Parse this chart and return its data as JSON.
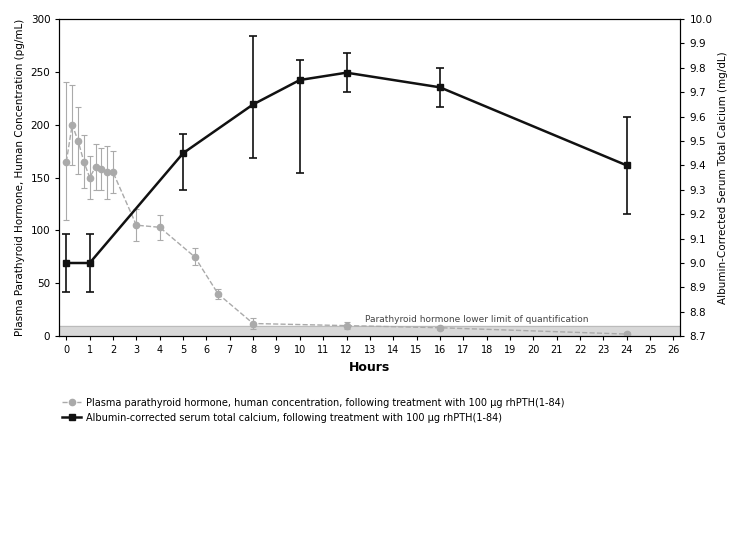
{
  "pth_x": [
    0,
    0.25,
    0.5,
    0.75,
    1,
    1.25,
    1.5,
    1.75,
    2,
    3,
    4,
    5.5,
    6.5,
    8,
    12,
    16,
    24
  ],
  "pth_y": [
    165,
    200,
    185,
    165,
    150,
    160,
    158,
    155,
    155,
    105,
    103,
    75,
    40,
    12,
    10,
    8,
    2
  ],
  "pth_ye_upper": [
    75,
    38,
    32,
    25,
    20,
    22,
    20,
    25,
    20,
    15,
    12,
    8,
    5,
    5,
    3,
    2,
    2
  ],
  "pth_ye_lower": [
    55,
    38,
    32,
    25,
    20,
    22,
    20,
    25,
    20,
    15,
    12,
    8,
    5,
    5,
    3,
    2,
    2
  ],
  "ca_x": [
    0,
    1,
    5,
    8,
    10,
    12,
    16,
    24
  ],
  "ca_y": [
    9.0,
    9.0,
    9.45,
    9.65,
    9.75,
    9.78,
    9.72,
    9.4
  ],
  "ca_ye_upper": [
    0.12,
    0.12,
    0.08,
    0.28,
    0.08,
    0.08,
    0.08,
    0.2
  ],
  "ca_ye_lower": [
    0.12,
    0.12,
    0.15,
    0.22,
    0.38,
    0.08,
    0.08,
    0.2
  ],
  "pth_llq": 10,
  "pth_ylim": [
    0,
    300
  ],
  "ca_ylim": [
    8.7,
    10.0
  ],
  "pth_yticks": [
    0,
    50,
    100,
    150,
    200,
    250,
    300
  ],
  "ca_yticks": [
    8.7,
    8.8,
    8.9,
    9.0,
    9.1,
    9.2,
    9.3,
    9.4,
    9.5,
    9.6,
    9.7,
    9.8,
    9.9,
    10.0
  ],
  "xticks": [
    0,
    1,
    2,
    3,
    4,
    5,
    6,
    7,
    8,
    9,
    10,
    11,
    12,
    13,
    14,
    15,
    16,
    17,
    18,
    19,
    20,
    21,
    22,
    23,
    24,
    25,
    26
  ],
  "xlim": [
    -0.3,
    26.3
  ],
  "xlabel": "Hours",
  "ylabel_left": "Plasma Parathyroid Hormone, Human Concentration (pg/mL)",
  "ylabel_right": "Albumin-Corrected Serum Total Calcium (mg/dL)",
  "legend_pth": "Plasma parathyroid hormone, human concentration, following treatment with 100 μg rhPTH(1-84)",
  "legend_ca": "Albumin-corrected serum total calcium, following treatment with 100 μg rhPTH(1-84)",
  "llq_label": "Parathyroid hormone lower limit of quantification",
  "pth_color": "#aaaaaa",
  "ca_color": "#111111",
  "llq_fill_color": "#d8d8d8",
  "bg_color": "#ffffff",
  "font_size": 8
}
